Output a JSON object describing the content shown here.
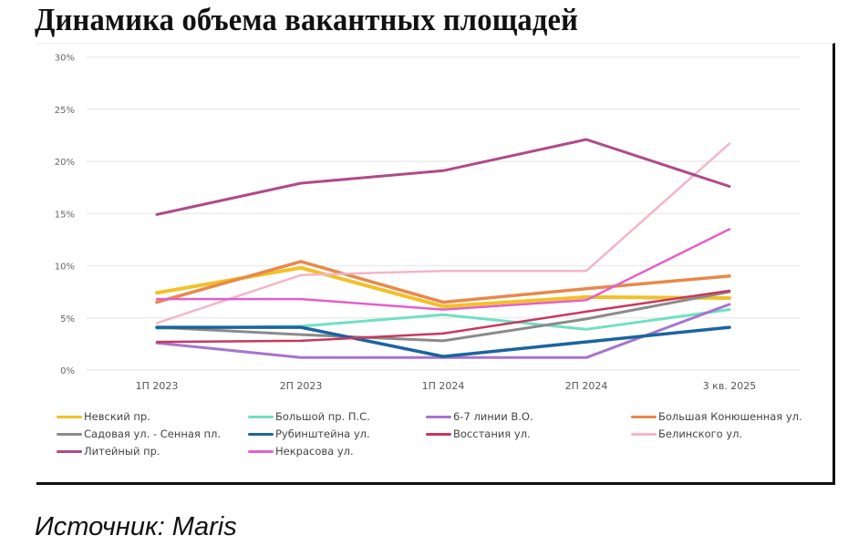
{
  "title": "Динамика объема вакантных площадей",
  "source": "Источник: Maris",
  "chart_data": {
    "type": "line",
    "title": "Динамика объема вакантных площадей",
    "xlabel": "",
    "ylabel": "",
    "ylim": [
      0,
      30
    ],
    "yticks": [
      "0%",
      "5%",
      "10%",
      "15%",
      "20%",
      "25%",
      "30%"
    ],
    "grid": true,
    "legend_position": "bottom",
    "categories": [
      "1П 2023",
      "2П 2023",
      "1П 2024",
      "2П 2024",
      "3 кв. 2025"
    ],
    "series": [
      {
        "name": "Невский пр.",
        "color": "#f2c027",
        "width": 4,
        "values": [
          7.4,
          9.8,
          6.1,
          7.0,
          6.9
        ]
      },
      {
        "name": "Большой пр. П.С.",
        "color": "#6fe0c4",
        "width": 3,
        "values": [
          4.0,
          4.2,
          5.3,
          3.9,
          5.8
        ]
      },
      {
        "name": "6-7 линии В.О.",
        "color": "#a674cf",
        "width": 3,
        "values": [
          2.6,
          1.2,
          1.2,
          1.2,
          6.3
        ]
      },
      {
        "name": "Большая Конюшенная ул.",
        "color": "#e8884a",
        "width": 3.5,
        "values": [
          6.5,
          10.4,
          6.5,
          7.8,
          9.0
        ]
      },
      {
        "name": "Садовая ул. - Сенная пл.",
        "color": "#8a8a8a",
        "width": 3,
        "values": [
          4.1,
          3.4,
          2.8,
          4.9,
          7.5
        ]
      },
      {
        "name": "Рубинштейна ул.",
        "color": "#1b64a0",
        "width": 3.5,
        "values": [
          4.1,
          4.1,
          1.3,
          2.7,
          4.1
        ]
      },
      {
        "name": "Восстания ул.",
        "color": "#c9375e",
        "width": 2.5,
        "values": [
          2.7,
          2.8,
          3.5,
          5.6,
          7.6
        ]
      },
      {
        "name": "Белинского ул.",
        "color": "#f2b6c6",
        "width": 2.5,
        "values": [
          4.5,
          9.1,
          9.5,
          9.5,
          21.7
        ]
      },
      {
        "name": "Литейный пр.",
        "color": "#b04a8a",
        "width": 3,
        "values": [
          14.9,
          17.9,
          19.1,
          22.1,
          17.6
        ]
      },
      {
        "name": "Некрасова ул.",
        "color": "#e45fcb",
        "width": 2.5,
        "values": [
          6.8,
          6.8,
          5.8,
          6.7,
          13.5
        ]
      }
    ]
  },
  "legend": [
    {
      "label": "Невский пр.",
      "color": "#f2c027"
    },
    {
      "label": "Большой пр. П.С.",
      "color": "#6fe0c4"
    },
    {
      "label": "6-7 линии В.О.",
      "color": "#a674cf"
    },
    {
      "label": "Большая Конюшенная ул.",
      "color": "#e8884a"
    },
    {
      "label": "Садовая ул. - Сенная пл.",
      "color": "#8a8a8a"
    },
    {
      "label": "Рубинштейна ул.",
      "color": "#1b64a0"
    },
    {
      "label": "Восстания ул.",
      "color": "#c9375e"
    },
    {
      "label": "Белинского ул.",
      "color": "#f2b6c6"
    },
    {
      "label": "Литейный пр.",
      "color": "#b04a8a"
    },
    {
      "label": "Некрасова ул.",
      "color": "#e45fcb"
    }
  ]
}
